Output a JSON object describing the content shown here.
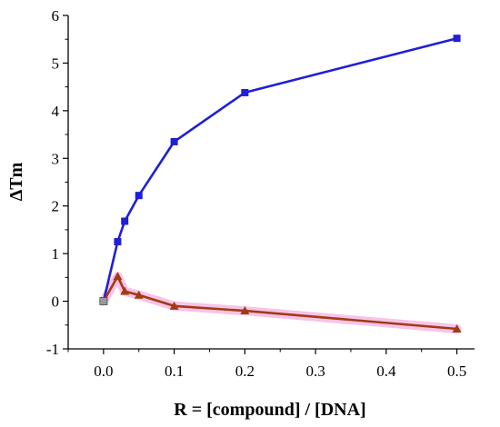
{
  "chart_data": {
    "type": "line",
    "title": "",
    "xlabel": "R = [compound] / [DNA]",
    "ylabel": "ΔTm",
    "xlim": [
      -0.05,
      0.525
    ],
    "ylim": [
      -1,
      6
    ],
    "x_ticks": [
      "0.0",
      "0.1",
      "0.2",
      "0.3",
      "0.4",
      "0.5"
    ],
    "x_tick_values": [
      0.0,
      0.1,
      0.2,
      0.3,
      0.4,
      0.5
    ],
    "y_ticks": [
      "-1",
      "0",
      "1",
      "2",
      "3",
      "4",
      "5",
      "6"
    ],
    "y_tick_values": [
      -1,
      0,
      1,
      2,
      3,
      4,
      5,
      6
    ],
    "grid": false,
    "legend": "none",
    "series": [
      {
        "color": "#1f1fd6",
        "marker": "square",
        "x": [
          0.0,
          0.02,
          0.03,
          0.05,
          0.1,
          0.2,
          0.5
        ],
        "y": [
          0.0,
          1.25,
          1.68,
          2.22,
          3.35,
          4.38,
          5.52
        ]
      },
      {
        "color": "#a23b12",
        "marker": "triangle",
        "band_color": "#f6b8e6",
        "x": [
          0.0,
          0.02,
          0.03,
          0.05,
          0.1,
          0.2,
          0.5
        ],
        "y": [
          0.0,
          0.52,
          0.21,
          0.13,
          -0.1,
          -0.2,
          -0.58
        ]
      }
    ]
  }
}
